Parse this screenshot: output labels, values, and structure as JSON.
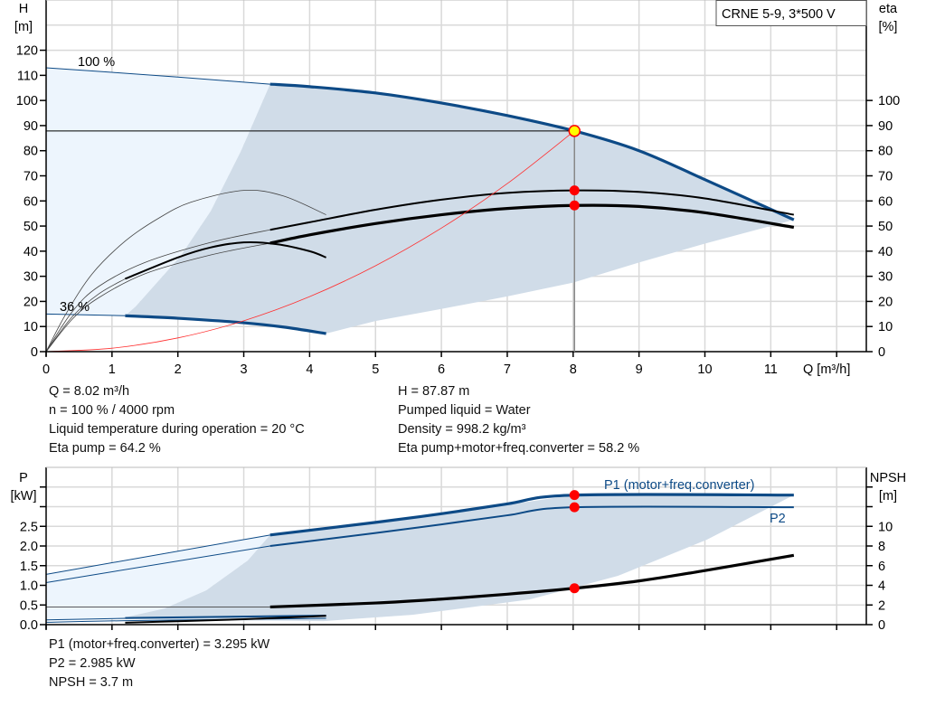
{
  "colors": {
    "curve_blue": "#0d4a86",
    "dark_area": "#d0dce8",
    "light_area": "#edf5fd",
    "grid": "#d9d9d9",
    "duty_point": "#ff0000",
    "duty_highlight": "#ffff00",
    "system_curve": "#ff3030"
  },
  "chart_data": [
    {
      "type": "line",
      "title": "CRNE 5-9, 3*500 V",
      "xlabel": "Q [m³/h]",
      "ylabel_left": "H",
      "ylabel_left_unit": "[m]",
      "ylabel_right": "eta",
      "ylabel_right_unit": "[%]",
      "xlim": [
        0,
        12.4
      ],
      "ylim_left": [
        0,
        140
      ],
      "ylim_right": [
        0,
        140
      ],
      "grid": true,
      "x_ticks": [
        "0",
        "1",
        "2",
        "3",
        "4",
        "5",
        "6",
        "7",
        "8",
        "9",
        "10",
        "11"
      ],
      "y_ticks_left": [
        "0",
        "10",
        "20",
        "30",
        "40",
        "50",
        "60",
        "70",
        "80",
        "90",
        "100",
        "110",
        "120"
      ],
      "y_ticks_right": [
        "0",
        "10",
        "20",
        "30",
        "40",
        "50",
        "60",
        "70",
        "80",
        "90",
        "100"
      ],
      "annotations": {
        "speed_max": "100 %",
        "speed_min": "36 %"
      },
      "areas": {
        "full_range": [
          [
            0,
            113
          ],
          [
            1,
            111.2
          ],
          [
            2,
            109.3
          ],
          [
            3,
            107.3
          ],
          [
            3.4,
            106.5
          ],
          [
            2.96,
            80
          ],
          [
            2.5,
            56
          ],
          [
            2.04,
            38
          ],
          [
            1.36,
            18
          ],
          [
            1.2,
            14.3
          ],
          [
            0,
            15
          ]
        ],
        "recommended": [
          [
            3.4,
            106.5
          ],
          [
            4,
            105.5
          ],
          [
            5,
            103
          ],
          [
            6,
            99
          ],
          [
            7,
            94
          ],
          [
            8.02,
            87.87
          ],
          [
            9,
            80
          ],
          [
            10,
            68.5
          ],
          [
            11.35,
            52.5
          ],
          [
            10,
            43
          ],
          [
            9,
            35.5
          ],
          [
            8,
            27.5
          ],
          [
            7,
            22
          ],
          [
            6,
            17
          ],
          [
            5,
            12.2
          ],
          [
            4.25,
            7.2
          ],
          [
            3,
            11.5
          ],
          [
            2,
            13.3
          ],
          [
            1.2,
            14.3
          ],
          [
            1.36,
            18
          ],
          [
            2.04,
            38
          ],
          [
            2.5,
            56
          ],
          [
            2.96,
            80
          ]
        ]
      },
      "series": [
        {
          "id": "qh_100_ext",
          "axis": "left",
          "style": "thin-blue",
          "points": [
            [
              0,
              113
            ],
            [
              1,
              111.2
            ],
            [
              2,
              109.3
            ],
            [
              3,
              107.3
            ],
            [
              3.4,
              106.5
            ]
          ]
        },
        {
          "id": "qh_100",
          "axis": "left",
          "style": "thick-blue",
          "points": [
            [
              3.4,
              106.5
            ],
            [
              4,
              105.5
            ],
            [
              5,
              103
            ],
            [
              6,
              99
            ],
            [
              7,
              94
            ],
            [
              8.02,
              87.87
            ],
            [
              9,
              80
            ],
            [
              10,
              68.5
            ],
            [
              11.35,
              52.5
            ]
          ]
        },
        {
          "id": "qh_36_ext",
          "axis": "left",
          "style": "thin-blue",
          "points": [
            [
              0,
              15
            ],
            [
              1.2,
              14.3
            ]
          ]
        },
        {
          "id": "qh_36",
          "axis": "left",
          "style": "thick-blue",
          "points": [
            [
              1.2,
              14.3
            ],
            [
              2,
              13.3
            ],
            [
              3,
              11.5
            ],
            [
              3.6,
              9.8
            ],
            [
              4.25,
              7.2
            ]
          ]
        },
        {
          "id": "eta_pump_100",
          "axis": "right",
          "style": "black",
          "points": [
            [
              3.4,
              48.5
            ],
            [
              4,
              51.5
            ],
            [
              5,
              56.5
            ],
            [
              6,
              60.5
            ],
            [
              7,
              63.2
            ],
            [
              8.02,
              64.2
            ],
            [
              9,
              63.6
            ],
            [
              10,
              61
            ],
            [
              11.35,
              54.5
            ]
          ]
        },
        {
          "id": "eta_total_100",
          "axis": "right",
          "style": "black-thick",
          "points": [
            [
              3.4,
              43.2
            ],
            [
              4,
              46.5
            ],
            [
              5,
              51
            ],
            [
              6,
              54.5
            ],
            [
              7,
              57
            ],
            [
              8.02,
              58.2
            ],
            [
              9,
              57.8
            ],
            [
              10,
              55.3
            ],
            [
              11.35,
              49.5
            ]
          ]
        },
        {
          "id": "eta_pump_100_ext",
          "axis": "right",
          "style": "thin-black",
          "points": [
            [
              0,
              0
            ],
            [
              0.4,
              16
            ],
            [
              0.8,
              26
            ],
            [
              1.5,
              35.5
            ],
            [
              2.5,
              43.5
            ],
            [
              3.4,
              48.5
            ]
          ]
        },
        {
          "id": "eta_total_100_ext",
          "axis": "right",
          "style": "thin-black",
          "points": [
            [
              0,
              0
            ],
            [
              0.4,
              13
            ],
            [
              0.8,
              21.5
            ],
            [
              1.5,
              31
            ],
            [
              2.5,
              38.5
            ],
            [
              3.4,
              43.2
            ]
          ]
        },
        {
          "id": "eta_36_ext",
          "axis": "right",
          "style": "thin-black",
          "points": [
            [
              0,
              0
            ],
            [
              0.4,
              14
            ],
            [
              0.8,
              23
            ],
            [
              1.2,
              29
            ]
          ]
        },
        {
          "id": "eta_pump_36",
          "axis": "right",
          "style": "black",
          "points": [
            [
              1.2,
              29
            ],
            [
              2,
              37.5
            ],
            [
              2.5,
              41.5
            ],
            [
              3,
              43.5
            ],
            [
              3.5,
              42.8
            ],
            [
              4,
              40
            ],
            [
              4.25,
              37.5
            ]
          ]
        },
        {
          "id": "eta_arc_ext",
          "axis": "right",
          "style": "thin-black",
          "points": [
            [
              0,
              0
            ],
            [
              0.3,
              15
            ],
            [
              0.7,
              31
            ],
            [
              1.2,
              44
            ],
            [
              1.7,
              53
            ],
            [
              2.2,
              59.5
            ],
            [
              3,
              64.2
            ],
            [
              3.6,
              62
            ],
            [
              4.25,
              54.5
            ]
          ]
        },
        {
          "id": "system_curve",
          "axis": "left",
          "style": "red",
          "points": [
            [
              0,
              0
            ],
            [
              1,
              1.37
            ],
            [
              2,
              5.46
            ],
            [
              3,
              12.3
            ],
            [
              4,
              21.9
            ],
            [
              5,
              34.2
            ],
            [
              6,
              49.2
            ],
            [
              7,
              66.9
            ],
            [
              8.02,
              87.87
            ]
          ]
        }
      ],
      "duty_point": {
        "q": 8.02,
        "h": 87.87,
        "eta_pump": 64.2,
        "eta_total": 58.2
      }
    },
    {
      "type": "line",
      "ylabel_left": "P",
      "ylabel_left_unit": "[kW]",
      "ylabel_right": "NPSH",
      "ylabel_right_unit": "[m]",
      "xlim": [
        0,
        12.4
      ],
      "ylim_left": [
        0,
        4
      ],
      "ylim_right": [
        0,
        16
      ],
      "grid": true,
      "y_ticks_left": [
        "0.0",
        "0.5",
        "1.0",
        "1.5",
        "2.0",
        "2.5"
      ],
      "y_ticks_right": [
        "0",
        "2",
        "4",
        "6",
        "8",
        "10"
      ],
      "legend": {
        "p1": "P1 (motor+freq.converter)",
        "p2": "P2"
      },
      "areas": {
        "full_range": [
          [
            0,
            1.28
          ],
          [
            3.4,
            2.28
          ],
          [
            3.06,
            1.63
          ],
          [
            2.43,
            0.87
          ],
          [
            1.8,
            0.41
          ],
          [
            1.08,
            0.14
          ],
          [
            0,
            0.1
          ]
        ],
        "recommended": [
          [
            3.4,
            2.28
          ],
          [
            5,
            2.57
          ],
          [
            6,
            2.8
          ],
          [
            7,
            3.05
          ],
          [
            8.02,
            3.295
          ],
          [
            11.35,
            3.295
          ],
          [
            10.03,
            2.16
          ],
          [
            8.68,
            1.24
          ],
          [
            7.34,
            0.64
          ],
          [
            5.56,
            0.25
          ],
          [
            4.21,
            0.09
          ],
          [
            1.08,
            0.14
          ],
          [
            1.8,
            0.41
          ],
          [
            2.43,
            0.87
          ],
          [
            3.06,
            1.63
          ]
        ]
      },
      "series": [
        {
          "id": "p1_ext",
          "axis": "left",
          "style": "thin-blue",
          "points": [
            [
              0,
              1.28
            ],
            [
              3.4,
              2.28
            ]
          ]
        },
        {
          "id": "p1",
          "axis": "left",
          "style": "thick-blue",
          "points": [
            [
              3.4,
              2.28
            ],
            [
              5,
              2.6
            ],
            [
              6,
              2.82
            ],
            [
              7,
              3.07
            ],
            [
              8.02,
              3.295
            ],
            [
              11.35,
              3.295
            ]
          ]
        },
        {
          "id": "p2_ext",
          "axis": "left",
          "style": "thin-blue",
          "points": [
            [
              0,
              1.07
            ],
            [
              3.4,
              2.0
            ]
          ]
        },
        {
          "id": "p2",
          "axis": "left",
          "style": "blue",
          "points": [
            [
              3.4,
              2.0
            ],
            [
              5,
              2.33
            ],
            [
              6,
              2.55
            ],
            [
              7,
              2.78
            ],
            [
              8.02,
              2.985
            ],
            [
              11.35,
              2.985
            ]
          ]
        },
        {
          "id": "p1_36_ext",
          "axis": "left",
          "style": "thin-blue",
          "points": [
            [
              0,
              0.12
            ],
            [
              1.2,
              0.16
            ]
          ]
        },
        {
          "id": "p1_36",
          "axis": "left",
          "style": "blue",
          "points": [
            [
              1.2,
              0.17
            ],
            [
              4.25,
              0.23
            ]
          ]
        },
        {
          "id": "p2_36_ext",
          "axis": "left",
          "style": "thin-blue",
          "points": [
            [
              0,
              0.06
            ],
            [
              1.2,
              0.1
            ],
            [
              4.25,
              0.16
            ]
          ]
        },
        {
          "id": "npsh_36",
          "axis": "right",
          "style": "black",
          "points": [
            [
              1.2,
              0.2
            ],
            [
              2,
              0.35
            ],
            [
              3,
              0.55
            ],
            [
              4.25,
              0.9
            ]
          ]
        },
        {
          "id": "npsh_ext",
          "axis": "right",
          "style": "thin-black",
          "points": [
            [
              0,
              1.8
            ],
            [
              3.4,
              1.8
            ]
          ]
        },
        {
          "id": "npsh",
          "axis": "right",
          "style": "black-thick",
          "points": [
            [
              3.4,
              1.8
            ],
            [
              5,
              2.2
            ],
            [
              6,
              2.6
            ],
            [
              7,
              3.1
            ],
            [
              8.02,
              3.7
            ],
            [
              9,
              4.45
            ],
            [
              10,
              5.5
            ],
            [
              11.35,
              7.05
            ]
          ]
        }
      ],
      "duty_point": {
        "q": 8.02,
        "p1": 3.295,
        "p2": 2.985,
        "npsh": 3.7
      }
    }
  ],
  "results_top": {
    "left": [
      "Q = 8.02 m³/h",
      "n = 100 % / 4000 rpm",
      "Liquid temperature during operation = 20 °C",
      "Eta pump = 64.2 %"
    ],
    "right": [
      "H = 87.87 m",
      "Pumped liquid = Water",
      "Density = 998.2 kg/m³",
      "Eta pump+motor+freq.converter = 58.2 %"
    ]
  },
  "results_bottom": [
    "P1 (motor+freq.converter) = 3.295 kW",
    "P2 = 2.985 kW",
    "NPSH = 3.7 m"
  ]
}
